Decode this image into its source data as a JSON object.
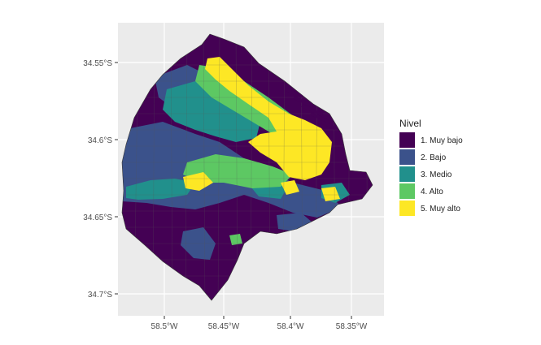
{
  "map": {
    "x_axis": {
      "labels": [
        "58.5°W",
        "58.45°W",
        "58.4°W",
        "58.35°W"
      ],
      "values": [
        -58.5,
        -58.45,
        -58.4,
        -58.35
      ]
    },
    "y_axis": {
      "labels": [
        "34.55°S",
        "34.6°S",
        "34.65°S",
        "34.7°S"
      ],
      "values": [
        -34.55,
        -34.6,
        -34.65,
        -34.7
      ]
    },
    "panel_background": "#ebebeb",
    "grid_color": "#ffffff",
    "legend": {
      "title": "Nivel",
      "placement": "right",
      "items": [
        {
          "label": "1. Muy bajo",
          "color": "#440154"
        },
        {
          "label": "2. Bajo",
          "color": "#3b528b"
        },
        {
          "label": "3. Medio",
          "color": "#21908c"
        },
        {
          "label": "4. Alto",
          "color": "#5dc863"
        },
        {
          "label": "5. Muy alto",
          "color": "#fde725"
        }
      ]
    }
  }
}
